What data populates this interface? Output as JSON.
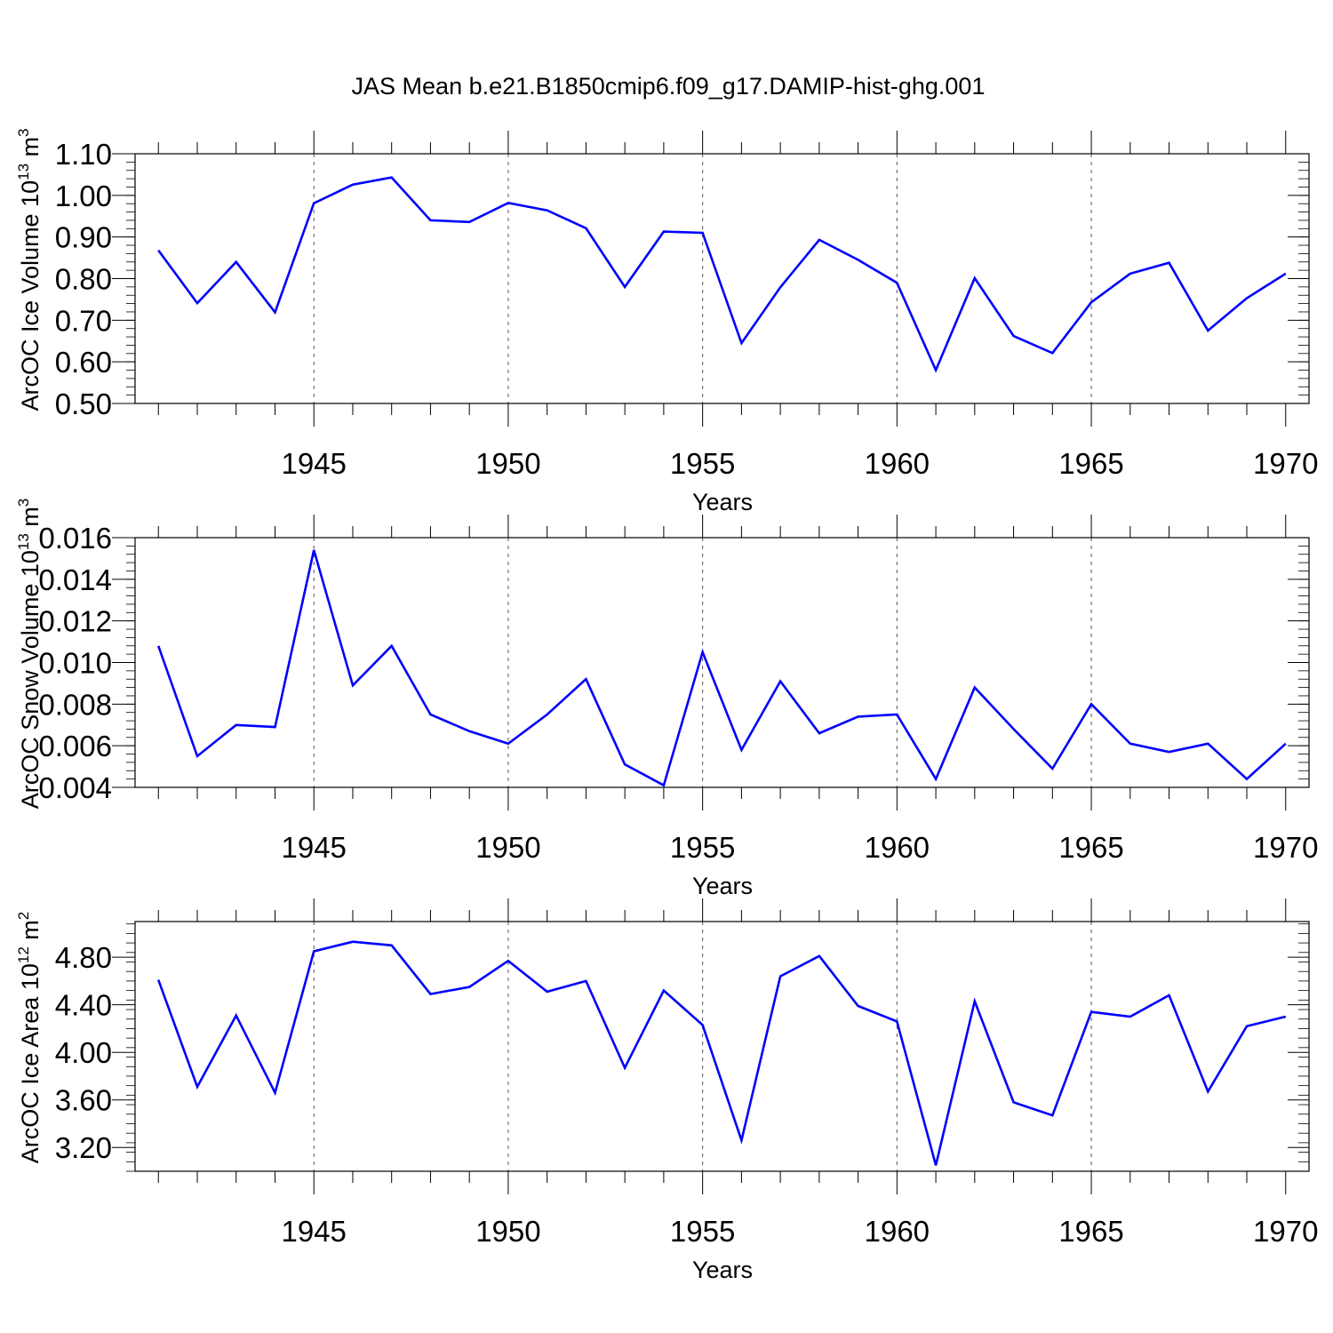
{
  "figure": {
    "title": "JAS Mean b.e21.B1850cmip6.f09_g17.DAMIP-hist-ghg.001"
  },
  "chart_data": [
    {
      "type": "line",
      "ylabel_main": "ArcOC Ice Volume 10",
      "ylabel_exp": "13",
      "ylabel_unit": " m",
      "ylabel_unit_exp": "3",
      "xlabel": "Years",
      "color": "#0000ff",
      "xlim": [
        1941,
        1970
      ],
      "ylim": [
        0.5,
        1.1
      ],
      "x_ticks": [
        1945,
        1950,
        1955,
        1960,
        1965,
        1970
      ],
      "y_ticks": [
        0.5,
        0.6,
        0.7,
        0.8,
        0.9,
        1.0,
        1.1
      ],
      "y_tick_labels": [
        "0.50",
        "0.60",
        "0.70",
        "0.80",
        "0.90",
        "1.00",
        "1.10"
      ],
      "grid": "dashed vertical at major x ticks",
      "x": [
        1941,
        1942,
        1943,
        1944,
        1945,
        1946,
        1947,
        1948,
        1949,
        1950,
        1951,
        1952,
        1953,
        1954,
        1955,
        1956,
        1957,
        1958,
        1959,
        1960,
        1961,
        1962,
        1963,
        1964,
        1965,
        1966,
        1967,
        1968,
        1969,
        1970
      ],
      "values": [
        0.868,
        0.741,
        0.84,
        0.719,
        0.981,
        1.026,
        1.043,
        0.94,
        0.936,
        0.982,
        0.964,
        0.921,
        0.78,
        0.913,
        0.91,
        0.645,
        0.779,
        0.893,
        0.845,
        0.79,
        0.58,
        0.801,
        0.662,
        0.621,
        0.743,
        0.812,
        0.838,
        0.675,
        0.753,
        0.812
      ]
    },
    {
      "type": "line",
      "ylabel_main": "ArcOC Snow Volume 10",
      "ylabel_exp": "13",
      "ylabel_unit": " m",
      "ylabel_unit_exp": "3",
      "xlabel": "Years",
      "color": "#0000ff",
      "xlim": [
        1941,
        1970
      ],
      "ylim": [
        0.004,
        0.016
      ],
      "x_ticks": [
        1945,
        1950,
        1955,
        1960,
        1965,
        1970
      ],
      "y_ticks": [
        0.004,
        0.006,
        0.008,
        0.01,
        0.012,
        0.014,
        0.016
      ],
      "y_tick_labels": [
        "0.004",
        "0.006",
        "0.008",
        "0.010",
        "0.012",
        "0.014",
        "0.016"
      ],
      "grid": "dashed vertical at major x ticks",
      "x": [
        1941,
        1942,
        1943,
        1944,
        1945,
        1946,
        1947,
        1948,
        1949,
        1950,
        1951,
        1952,
        1953,
        1954,
        1955,
        1956,
        1957,
        1958,
        1959,
        1960,
        1961,
        1962,
        1963,
        1964,
        1965,
        1966,
        1967,
        1968,
        1969,
        1970
      ],
      "values": [
        0.0108,
        0.0055,
        0.007,
        0.0069,
        0.0154,
        0.0089,
        0.0108,
        0.0075,
        0.0067,
        0.0061,
        0.0075,
        0.0092,
        0.0051,
        0.0041,
        0.0105,
        0.0058,
        0.0091,
        0.0066,
        0.0074,
        0.0075,
        0.0044,
        0.0088,
        0.0068,
        0.0049,
        0.008,
        0.0061,
        0.0057,
        0.0061,
        0.0044,
        0.0061
      ]
    },
    {
      "type": "line",
      "ylabel_main": "ArcOC Ice Area 10",
      "ylabel_exp": "12",
      "ylabel_unit": " m",
      "ylabel_unit_exp": "2",
      "xlabel": "Years",
      "color": "#0000ff",
      "xlim": [
        1941,
        1970
      ],
      "ylim": [
        3.0,
        5.1
      ],
      "x_ticks": [
        1945,
        1950,
        1955,
        1960,
        1965,
        1970
      ],
      "y_ticks": [
        3.2,
        3.6,
        4.0,
        4.4,
        4.8
      ],
      "y_tick_labels": [
        "3.20",
        "3.60",
        "4.00",
        "4.40",
        "4.80"
      ],
      "grid": "dashed vertical at major x ticks",
      "x": [
        1941,
        1942,
        1943,
        1944,
        1945,
        1946,
        1947,
        1948,
        1949,
        1950,
        1951,
        1952,
        1953,
        1954,
        1955,
        1956,
        1957,
        1958,
        1959,
        1960,
        1961,
        1962,
        1963,
        1964,
        1965,
        1966,
        1967,
        1968,
        1969,
        1970
      ],
      "values": [
        4.61,
        3.71,
        4.31,
        3.66,
        4.85,
        4.93,
        4.9,
        4.49,
        4.55,
        4.77,
        4.51,
        4.6,
        3.87,
        4.52,
        4.23,
        3.26,
        4.64,
        4.81,
        4.39,
        4.26,
        3.05,
        4.43,
        3.58,
        3.47,
        4.34,
        4.3,
        4.48,
        3.67,
        4.22,
        4.3
      ]
    }
  ]
}
